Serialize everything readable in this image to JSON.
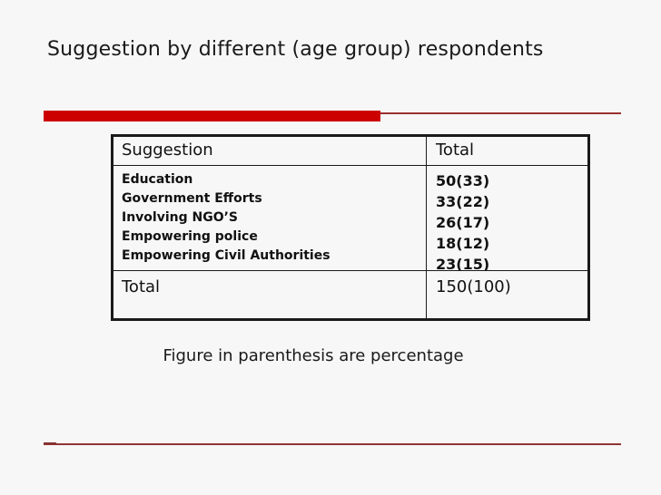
{
  "slide": {
    "title": "Suggestion by different (age group) respondents",
    "caption": "Figure in parenthesis are percentage",
    "colors": {
      "accent_red": "#cc0000",
      "rule_red": "#9b3030",
      "table_border": "#1a1a1a",
      "background": "#f7f7f7"
    }
  },
  "table": {
    "headers": {
      "suggestion": "Suggestion",
      "total": "Total"
    },
    "body": {
      "suggestions": [
        "Education",
        "Government Efforts",
        "Involving NGO’S",
        "Empowering police",
        "Empowering Civil Authorities"
      ],
      "totals": [
        "50(33)",
        "33(22)",
        "26(17)",
        "18(12)",
        "23(15)"
      ]
    },
    "footer": {
      "label": "Total",
      "value": "150(100)"
    }
  },
  "chart_data": {
    "type": "table",
    "title": "Suggestion by different (age group) respondents",
    "columns": [
      "Suggestion",
      "Total"
    ],
    "rows": [
      [
        "Education",
        "50(33)"
      ],
      [
        "Government Efforts",
        "33(22)"
      ],
      [
        "Involving NGO’S",
        "26(17)"
      ],
      [
        "Empowering police",
        "18(12)"
      ],
      [
        "Empowering Civil Authorities",
        "23(15)"
      ],
      [
        "Total",
        "150(100)"
      ]
    ],
    "note": "Figure in parenthesis are percentage"
  }
}
